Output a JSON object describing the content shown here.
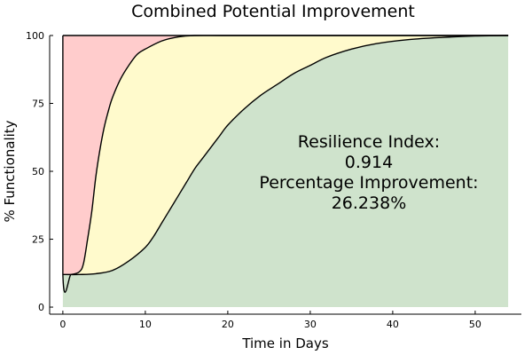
{
  "chart_data": {
    "type": "area",
    "title": "Combined Potential Improvement",
    "xlabel": "Time in Days",
    "ylabel": "% Functionality",
    "xlim": [
      -1.6,
      55.6
    ],
    "ylim": [
      -2.6,
      100
    ],
    "x_ticks": [
      0,
      10,
      20,
      30,
      40,
      50
    ],
    "y_ticks": [
      0,
      25,
      50,
      75,
      100
    ],
    "x_tick_labels": [
      "0",
      "10",
      "20",
      "30",
      "40",
      "50"
    ],
    "y_tick_labels": [
      "0",
      "25",
      "50",
      "75",
      "100"
    ],
    "grid": false,
    "x_domain_end": 54,
    "series": [
      {
        "role": "baseline-recovery",
        "fill_color": "#ffcccc",
        "x": [
          0,
          0,
          1,
          2,
          2.5,
          3,
          3.5,
          4,
          4.5,
          5,
          5.5,
          6,
          7,
          8,
          9,
          10,
          12,
          14,
          16,
          20,
          30,
          54
        ],
        "y": [
          100,
          12,
          12,
          13,
          16,
          25,
          35,
          48,
          58,
          66,
          72,
          77,
          84,
          89,
          93,
          95,
          98,
          99.5,
          100,
          100,
          100,
          100
        ]
      },
      {
        "role": "improved-recovery",
        "fill_color": "#fffacc",
        "x": [
          0,
          2,
          4,
          6,
          8,
          10,
          11,
          12,
          13,
          14,
          15,
          16,
          17,
          18,
          19,
          20,
          22,
          24,
          26,
          28,
          30,
          32,
          35,
          38,
          42,
          46,
          50,
          54
        ],
        "y": [
          12,
          12,
          12.3,
          13.5,
          17,
          22,
          26,
          31,
          36,
          41,
          46,
          51,
          55,
          59,
          63,
          67,
          73,
          78,
          82,
          86,
          89,
          92,
          95,
          97,
          98.5,
          99.3,
          99.8,
          100
        ]
      },
      {
        "role": "improvement-area",
        "fill_color": "#cfe3cc"
      }
    ],
    "annotations": [
      "Resilience Index:",
      "0.914",
      "Percentage Improvement:",
      "26.238%"
    ],
    "annotation_position": "center-right"
  }
}
